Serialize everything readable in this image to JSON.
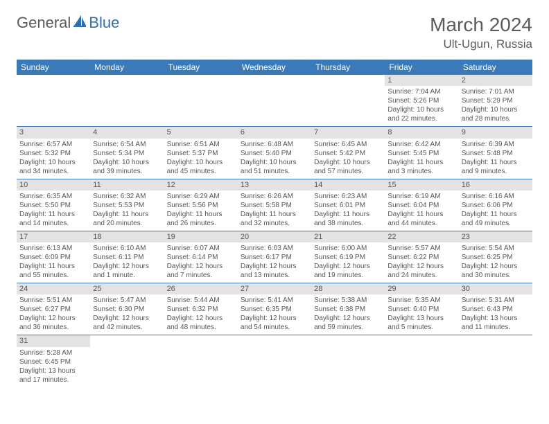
{
  "brand": {
    "part1": "General",
    "part2": "Blue"
  },
  "title": "March 2024",
  "location": "Ult-Ugun, Russia",
  "colors": {
    "header_bg": "#3a7ab8",
    "header_text": "#ffffff",
    "daynum_bg": "#e3e3e3",
    "text": "#555555",
    "row_border": "#3a7ab8",
    "logo_gray": "#5a5a5a",
    "logo_blue": "#2e6fae"
  },
  "day_names": [
    "Sunday",
    "Monday",
    "Tuesday",
    "Wednesday",
    "Thursday",
    "Friday",
    "Saturday"
  ],
  "weeks": [
    [
      {
        "empty": true
      },
      {
        "empty": true
      },
      {
        "empty": true
      },
      {
        "empty": true
      },
      {
        "empty": true
      },
      {
        "num": "1",
        "sunrise": "Sunrise: 7:04 AM",
        "sunset": "Sunset: 5:26 PM",
        "daylight1": "Daylight: 10 hours",
        "daylight2": "and 22 minutes."
      },
      {
        "num": "2",
        "sunrise": "Sunrise: 7:01 AM",
        "sunset": "Sunset: 5:29 PM",
        "daylight1": "Daylight: 10 hours",
        "daylight2": "and 28 minutes."
      }
    ],
    [
      {
        "num": "3",
        "sunrise": "Sunrise: 6:57 AM",
        "sunset": "Sunset: 5:32 PM",
        "daylight1": "Daylight: 10 hours",
        "daylight2": "and 34 minutes."
      },
      {
        "num": "4",
        "sunrise": "Sunrise: 6:54 AM",
        "sunset": "Sunset: 5:34 PM",
        "daylight1": "Daylight: 10 hours",
        "daylight2": "and 39 minutes."
      },
      {
        "num": "5",
        "sunrise": "Sunrise: 6:51 AM",
        "sunset": "Sunset: 5:37 PM",
        "daylight1": "Daylight: 10 hours",
        "daylight2": "and 45 minutes."
      },
      {
        "num": "6",
        "sunrise": "Sunrise: 6:48 AM",
        "sunset": "Sunset: 5:40 PM",
        "daylight1": "Daylight: 10 hours",
        "daylight2": "and 51 minutes."
      },
      {
        "num": "7",
        "sunrise": "Sunrise: 6:45 AM",
        "sunset": "Sunset: 5:42 PM",
        "daylight1": "Daylight: 10 hours",
        "daylight2": "and 57 minutes."
      },
      {
        "num": "8",
        "sunrise": "Sunrise: 6:42 AM",
        "sunset": "Sunset: 5:45 PM",
        "daylight1": "Daylight: 11 hours",
        "daylight2": "and 3 minutes."
      },
      {
        "num": "9",
        "sunrise": "Sunrise: 6:39 AM",
        "sunset": "Sunset: 5:48 PM",
        "daylight1": "Daylight: 11 hours",
        "daylight2": "and 9 minutes."
      }
    ],
    [
      {
        "num": "10",
        "sunrise": "Sunrise: 6:35 AM",
        "sunset": "Sunset: 5:50 PM",
        "daylight1": "Daylight: 11 hours",
        "daylight2": "and 14 minutes."
      },
      {
        "num": "11",
        "sunrise": "Sunrise: 6:32 AM",
        "sunset": "Sunset: 5:53 PM",
        "daylight1": "Daylight: 11 hours",
        "daylight2": "and 20 minutes."
      },
      {
        "num": "12",
        "sunrise": "Sunrise: 6:29 AM",
        "sunset": "Sunset: 5:56 PM",
        "daylight1": "Daylight: 11 hours",
        "daylight2": "and 26 minutes."
      },
      {
        "num": "13",
        "sunrise": "Sunrise: 6:26 AM",
        "sunset": "Sunset: 5:58 PM",
        "daylight1": "Daylight: 11 hours",
        "daylight2": "and 32 minutes."
      },
      {
        "num": "14",
        "sunrise": "Sunrise: 6:23 AM",
        "sunset": "Sunset: 6:01 PM",
        "daylight1": "Daylight: 11 hours",
        "daylight2": "and 38 minutes."
      },
      {
        "num": "15",
        "sunrise": "Sunrise: 6:19 AM",
        "sunset": "Sunset: 6:04 PM",
        "daylight1": "Daylight: 11 hours",
        "daylight2": "and 44 minutes."
      },
      {
        "num": "16",
        "sunrise": "Sunrise: 6:16 AM",
        "sunset": "Sunset: 6:06 PM",
        "daylight1": "Daylight: 11 hours",
        "daylight2": "and 49 minutes."
      }
    ],
    [
      {
        "num": "17",
        "sunrise": "Sunrise: 6:13 AM",
        "sunset": "Sunset: 6:09 PM",
        "daylight1": "Daylight: 11 hours",
        "daylight2": "and 55 minutes."
      },
      {
        "num": "18",
        "sunrise": "Sunrise: 6:10 AM",
        "sunset": "Sunset: 6:11 PM",
        "daylight1": "Daylight: 12 hours",
        "daylight2": "and 1 minute."
      },
      {
        "num": "19",
        "sunrise": "Sunrise: 6:07 AM",
        "sunset": "Sunset: 6:14 PM",
        "daylight1": "Daylight: 12 hours",
        "daylight2": "and 7 minutes."
      },
      {
        "num": "20",
        "sunrise": "Sunrise: 6:03 AM",
        "sunset": "Sunset: 6:17 PM",
        "daylight1": "Daylight: 12 hours",
        "daylight2": "and 13 minutes."
      },
      {
        "num": "21",
        "sunrise": "Sunrise: 6:00 AM",
        "sunset": "Sunset: 6:19 PM",
        "daylight1": "Daylight: 12 hours",
        "daylight2": "and 19 minutes."
      },
      {
        "num": "22",
        "sunrise": "Sunrise: 5:57 AM",
        "sunset": "Sunset: 6:22 PM",
        "daylight1": "Daylight: 12 hours",
        "daylight2": "and 24 minutes."
      },
      {
        "num": "23",
        "sunrise": "Sunrise: 5:54 AM",
        "sunset": "Sunset: 6:25 PM",
        "daylight1": "Daylight: 12 hours",
        "daylight2": "and 30 minutes."
      }
    ],
    [
      {
        "num": "24",
        "sunrise": "Sunrise: 5:51 AM",
        "sunset": "Sunset: 6:27 PM",
        "daylight1": "Daylight: 12 hours",
        "daylight2": "and 36 minutes."
      },
      {
        "num": "25",
        "sunrise": "Sunrise: 5:47 AM",
        "sunset": "Sunset: 6:30 PM",
        "daylight1": "Daylight: 12 hours",
        "daylight2": "and 42 minutes."
      },
      {
        "num": "26",
        "sunrise": "Sunrise: 5:44 AM",
        "sunset": "Sunset: 6:32 PM",
        "daylight1": "Daylight: 12 hours",
        "daylight2": "and 48 minutes."
      },
      {
        "num": "27",
        "sunrise": "Sunrise: 5:41 AM",
        "sunset": "Sunset: 6:35 PM",
        "daylight1": "Daylight: 12 hours",
        "daylight2": "and 54 minutes."
      },
      {
        "num": "28",
        "sunrise": "Sunrise: 5:38 AM",
        "sunset": "Sunset: 6:38 PM",
        "daylight1": "Daylight: 12 hours",
        "daylight2": "and 59 minutes."
      },
      {
        "num": "29",
        "sunrise": "Sunrise: 5:35 AM",
        "sunset": "Sunset: 6:40 PM",
        "daylight1": "Daylight: 13 hours",
        "daylight2": "and 5 minutes."
      },
      {
        "num": "30",
        "sunrise": "Sunrise: 5:31 AM",
        "sunset": "Sunset: 6:43 PM",
        "daylight1": "Daylight: 13 hours",
        "daylight2": "and 11 minutes."
      }
    ],
    [
      {
        "num": "31",
        "sunrise": "Sunrise: 5:28 AM",
        "sunset": "Sunset: 6:45 PM",
        "daylight1": "Daylight: 13 hours",
        "daylight2": "and 17 minutes."
      },
      {
        "empty": true
      },
      {
        "empty": true
      },
      {
        "empty": true
      },
      {
        "empty": true
      },
      {
        "empty": true
      },
      {
        "empty": true
      }
    ]
  ]
}
